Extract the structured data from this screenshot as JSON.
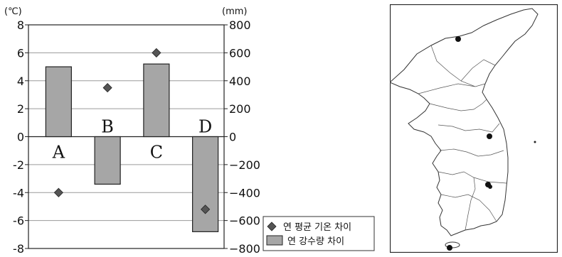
{
  "chart_data": {
    "type": "bar",
    "categories": [
      "A",
      "B",
      "C",
      "D"
    ],
    "y_left": {
      "unit": "(℃)",
      "range": [
        -8,
        8
      ],
      "ticks": [
        "8",
        "6",
        "4",
        "2",
        "0",
        "-2",
        "-4",
        "-6",
        "-8"
      ]
    },
    "y_right": {
      "unit": "(mm)",
      "range": [
        -800,
        800
      ],
      "ticks": [
        "800",
        "600",
        "400",
        "200",
        "0",
        "−200",
        "−400",
        "−600",
        "−800"
      ]
    },
    "series": [
      {
        "name": "연 평균 기온 차이",
        "type": "scatter",
        "marker": "diamond",
        "axis": "left",
        "color": "#555555",
        "values": [
          -4.0,
          3.5,
          6.0,
          -5.2
        ]
      },
      {
        "name": "연 강수량 차이",
        "type": "bar",
        "axis": "right",
        "color": "#a6a6a6",
        "values": [
          500,
          -340,
          520,
          -680
        ]
      }
    ],
    "grid": true,
    "legend": "bottom-right"
  },
  "map": {
    "description_icon": "korean-peninsula-map",
    "markers": 5
  }
}
